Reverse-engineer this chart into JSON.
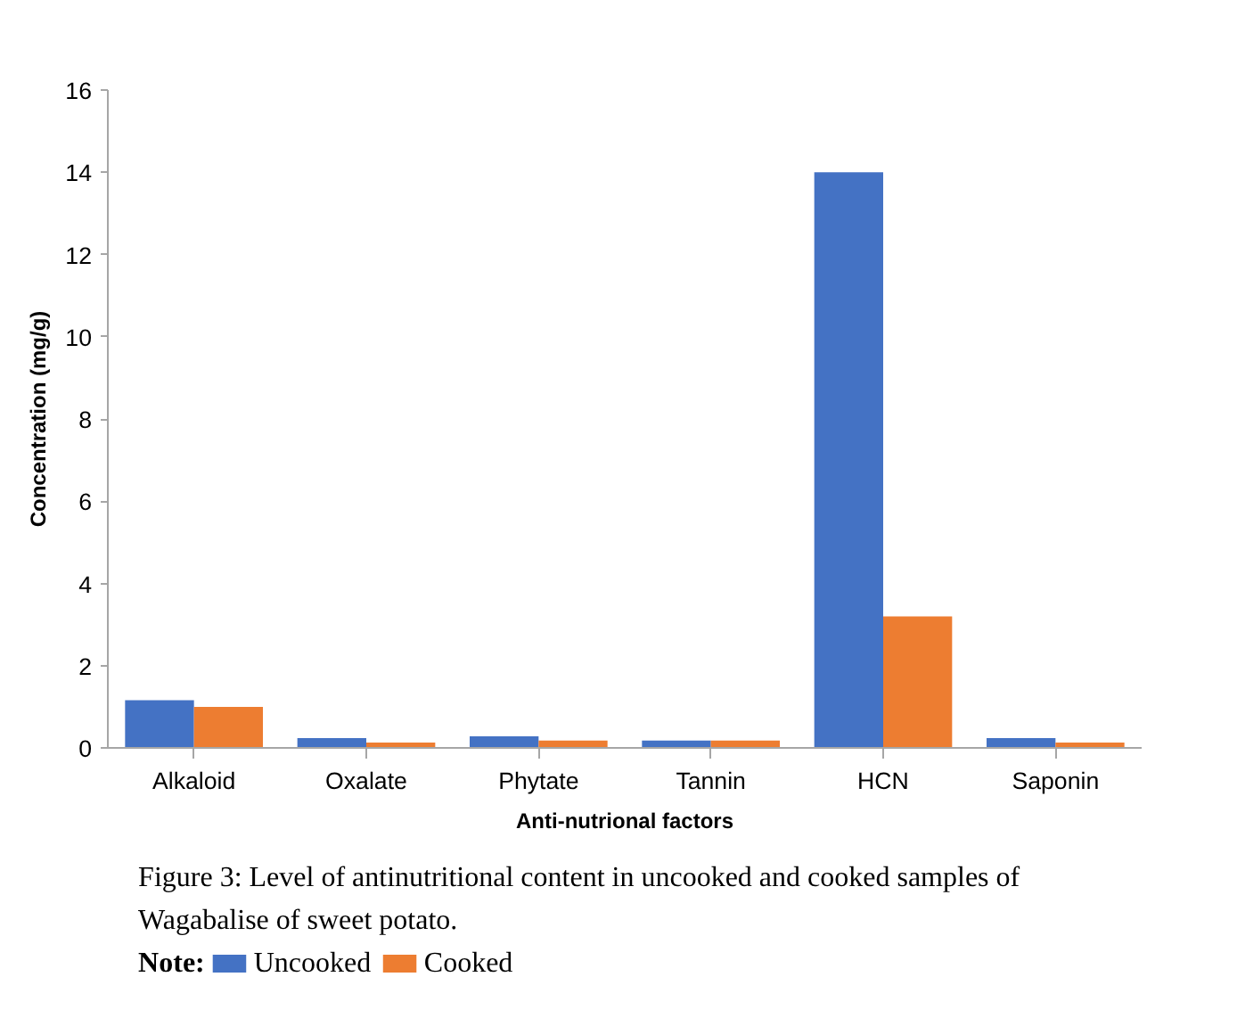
{
  "chart_data": {
    "type": "bar",
    "categories": [
      "Alkaloid",
      "Oxalate",
      "Phytate",
      "Tannin",
      "HCN",
      "Saponin"
    ],
    "series": [
      {
        "name": "Uncooked",
        "color": "#4472c4",
        "values": [
          1.16,
          0.24,
          0.28,
          0.18,
          14,
          0.24
        ]
      },
      {
        "name": "Cooked",
        "color": "#ed7d31",
        "values": [
          1.0,
          0.13,
          0.18,
          0.18,
          3.2,
          0.13
        ]
      }
    ],
    "xlabel": "Anti-nutrional factors",
    "ylabel": "Concentration (mg/g)",
    "ylim": [
      0,
      16
    ],
    "yticks": [
      0,
      2,
      4,
      6,
      8,
      10,
      12,
      14,
      16
    ],
    "grid": false,
    "legend": "bottom",
    "legend_title": "Note:",
    "annotations": [
      "Figure 3: Level of antinutritional content in uncooked and cooked samples of Wagabalise of sweet potato."
    ]
  }
}
